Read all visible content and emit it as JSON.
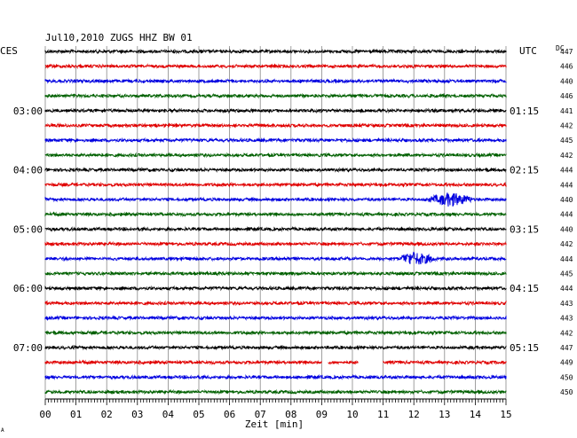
{
  "chart_data": {
    "type": "line",
    "title": "Jul10,2010   ZUGS HHZ BW 01",
    "left_timezone": "CES",
    "right_timezone": "UTC",
    "dc_header": "DC",
    "xlabel": "Zeit [min]",
    "x_ticks": [
      "00",
      "01",
      "02",
      "03",
      "04",
      "05",
      "06",
      "07",
      "08",
      "09",
      "10",
      "11",
      "12",
      "13",
      "14",
      "15"
    ],
    "xlim": [
      0,
      15
    ],
    "grid": true,
    "left_hour_labels": [
      {
        "row": 4,
        "text": "03:00"
      },
      {
        "row": 8,
        "text": "04:00"
      },
      {
        "row": 12,
        "text": "05:00"
      },
      {
        "row": 16,
        "text": "06:00"
      },
      {
        "row": 20,
        "text": "07:00"
      }
    ],
    "right_hour_labels": [
      {
        "row": 4,
        "text": "01:15"
      },
      {
        "row": 8,
        "text": "02:15"
      },
      {
        "row": 12,
        "text": "03:15"
      },
      {
        "row": 16,
        "text": "04:15"
      },
      {
        "row": 20,
        "text": "05:15"
      }
    ],
    "dc_values": [
      447,
      446,
      440,
      446,
      441,
      442,
      445,
      442,
      444,
      444,
      440,
      444,
      440,
      442,
      444,
      445,
      444,
      443,
      443,
      442,
      447,
      449,
      450,
      450
    ],
    "trace_colors": [
      "#000000",
      "#e00000",
      "#0000e0",
      "#006000"
    ],
    "events": [
      {
        "row": 10,
        "start_min": 12.3,
        "end_min": 13.9,
        "peak_min": 13.2
      },
      {
        "row": 14,
        "start_min": 11.6,
        "end_min": 12.8,
        "peak_min": 12.0
      }
    ],
    "gaps": [
      {
        "row": 21,
        "start_min": 9.0,
        "end_min": 9.2
      },
      {
        "row": 21,
        "start_min": 10.2,
        "end_min": 11.0
      }
    ],
    "bottom_marker": "A"
  }
}
